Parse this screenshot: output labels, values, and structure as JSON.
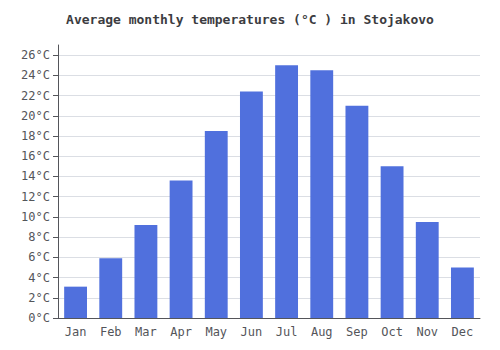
{
  "chart_data": {
    "type": "bar",
    "title": "Average monthly temperatures (°C ) in Stojakovo",
    "categories": [
      "Jan",
      "Feb",
      "Mar",
      "Apr",
      "May",
      "Jun",
      "Jul",
      "Aug",
      "Sep",
      "Oct",
      "Nov",
      "Dec"
    ],
    "values": [
      3.1,
      5.9,
      9.2,
      13.6,
      18.5,
      22.4,
      25.0,
      24.5,
      21.0,
      15.0,
      9.5,
      5.0
    ],
    "ylim": [
      0,
      27
    ],
    "yticks": [
      {
        "value": 0,
        "label": "0°C"
      },
      {
        "value": 2,
        "label": "2°C"
      },
      {
        "value": 4,
        "label": "4°C"
      },
      {
        "value": 6,
        "label": "6°C"
      },
      {
        "value": 8,
        "label": "8°C"
      },
      {
        "value": 10,
        "label": "10°C"
      },
      {
        "value": 12,
        "label": "12°C"
      },
      {
        "value": 14,
        "label": "14°C"
      },
      {
        "value": 16,
        "label": "16°C"
      },
      {
        "value": 18,
        "label": "18°C"
      },
      {
        "value": 20,
        "label": "20°C"
      },
      {
        "value": 22,
        "label": "22°C"
      },
      {
        "value": 24,
        "label": "24°C"
      },
      {
        "value": 26,
        "label": "26°C"
      }
    ],
    "grid": true
  }
}
